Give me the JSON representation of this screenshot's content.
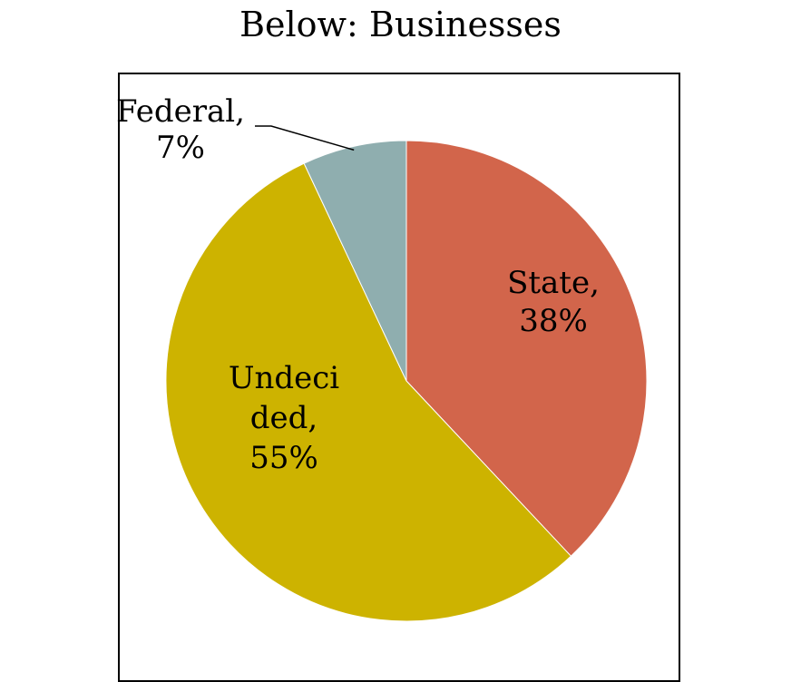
{
  "header": {
    "title": "Below: Businesses"
  },
  "chart_data": {
    "type": "pie",
    "title": "Below: Businesses",
    "slices": [
      {
        "label": "State",
        "value": 38,
        "display": [
          "State,",
          "38%"
        ],
        "color": "#D2654B"
      },
      {
        "label": "Undecided",
        "value": 55,
        "display": [
          "Undeci",
          "ded,",
          "55%"
        ],
        "color": "#CDB300"
      },
      {
        "label": "Federal",
        "value": 7,
        "display": [
          "Federal,",
          "7%"
        ],
        "color": "#8FAEAF"
      }
    ],
    "start_angle_deg": 0,
    "direction": "clockwise",
    "legend": "none"
  }
}
